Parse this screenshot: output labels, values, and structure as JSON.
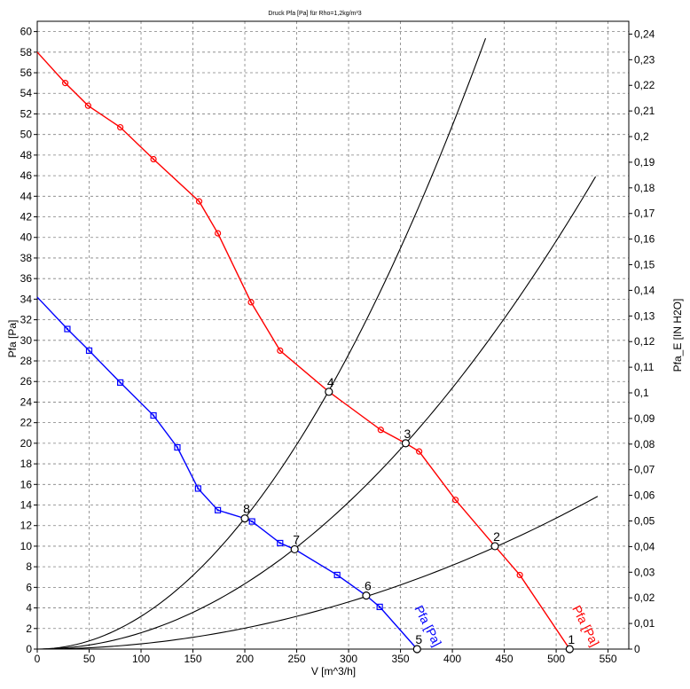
{
  "chart_data": {
    "type": "line",
    "title": "Druck Pfa [Pa] für Rho=1,2kg/m³3",
    "xlabel": "V [m^3/h]",
    "ylabel": "Pfa [Pa]",
    "y2label": "Pfa_E [IN H2O]",
    "xlim": [
      0,
      570
    ],
    "ylim": [
      0,
      61
    ],
    "y2lim": [
      0,
      0.245
    ],
    "xticks": [
      0,
      50,
      100,
      150,
      200,
      250,
      300,
      350,
      400,
      450,
      500,
      550
    ],
    "yticks": [
      0,
      2,
      4,
      6,
      8,
      10,
      12,
      14,
      16,
      18,
      20,
      22,
      24,
      26,
      28,
      30,
      32,
      34,
      36,
      38,
      40,
      42,
      44,
      46,
      48,
      50,
      52,
      54,
      56,
      58,
      60
    ],
    "y2ticks": [
      "0",
      "0,01",
      "0,02",
      "0,03",
      "0,04",
      "0,05",
      "0,06",
      "0,07",
      "0,08",
      "0,09",
      "0,1",
      "0,11",
      "0,12",
      "0,13",
      "0,14",
      "0,15",
      "0,16",
      "0,17",
      "0,18",
      "0,19",
      "0,2",
      "0,21",
      "0,22",
      "0,23",
      "0,24"
    ],
    "grid": true,
    "series": [
      {
        "name": "Pfa [Pa]",
        "color": "#ff0000",
        "marker": "circle",
        "points": [
          [
            0,
            58.0
          ],
          [
            27,
            55.0
          ],
          [
            49,
            52.8
          ],
          [
            80,
            50.7
          ],
          [
            112,
            47.6
          ],
          [
            156,
            43.5
          ],
          [
            174,
            40.4
          ],
          [
            206,
            33.7
          ],
          [
            234,
            29.0
          ],
          [
            281,
            25.0
          ],
          [
            331,
            21.3
          ],
          [
            355,
            20.0
          ],
          [
            368,
            19.2
          ],
          [
            403,
            14.5
          ],
          [
            441,
            10.0
          ],
          [
            465,
            7.2
          ],
          [
            513,
            0.0
          ]
        ],
        "markers": [
          [
            27,
            55.0
          ],
          [
            49,
            52.8
          ],
          [
            80,
            50.7
          ],
          [
            112,
            47.6
          ],
          [
            156,
            43.5
          ],
          [
            174,
            40.4
          ],
          [
            206,
            33.7
          ],
          [
            234,
            29.0
          ],
          [
            331,
            21.3
          ],
          [
            368,
            19.2
          ],
          [
            403,
            14.5
          ],
          [
            465,
            7.2
          ]
        ]
      },
      {
        "name": "Pfa [Pa]",
        "color": "#0000ff",
        "marker": "square",
        "points": [
          [
            0,
            34.2
          ],
          [
            29,
            31.1
          ],
          [
            50,
            29.0
          ],
          [
            80,
            25.9
          ],
          [
            112,
            22.7
          ],
          [
            135,
            19.6
          ],
          [
            155,
            15.6
          ],
          [
            174,
            13.5
          ],
          [
            200,
            12.7
          ],
          [
            207,
            12.4
          ],
          [
            234,
            10.3
          ],
          [
            248,
            9.7
          ],
          [
            289,
            7.2
          ],
          [
            317,
            5.2
          ],
          [
            330,
            4.1
          ],
          [
            366,
            0.0
          ]
        ],
        "markers": [
          [
            29,
            31.1
          ],
          [
            50,
            29.0
          ],
          [
            80,
            25.9
          ],
          [
            112,
            22.7
          ],
          [
            135,
            19.6
          ],
          [
            155,
            15.6
          ],
          [
            174,
            13.5
          ],
          [
            207,
            12.4
          ],
          [
            234,
            10.3
          ],
          [
            289,
            7.2
          ],
          [
            330,
            4.1
          ]
        ]
      }
    ],
    "system_curves": [
      {
        "k": 5.09e-05,
        "xmax": 540
      },
      {
        "k": 0.0001586,
        "xmax": 538
      },
      {
        "k": 0.000318,
        "xmax": 432
      }
    ],
    "operating_points": [
      {
        "label": "1",
        "x": 513,
        "y": 0.0
      },
      {
        "label": "2",
        "x": 441,
        "y": 10.0
      },
      {
        "label": "3",
        "x": 355,
        "y": 20.0
      },
      {
        "label": "4",
        "x": 281,
        "y": 25.0
      },
      {
        "label": "5",
        "x": 366,
        "y": 0.0
      },
      {
        "label": "6",
        "x": 317,
        "y": 5.2
      },
      {
        "label": "7",
        "x": 248,
        "y": 9.7
      },
      {
        "label": "8",
        "x": 200,
        "y": 12.7
      }
    ],
    "annotations": [
      {
        "text": "Pfa [Pa]",
        "color": "#ff0000",
        "x": 502,
        "y": 0.5
      },
      {
        "text": "Pfa [Pa]",
        "color": "#0000ff",
        "x": 350,
        "y": 0.5
      }
    ]
  }
}
